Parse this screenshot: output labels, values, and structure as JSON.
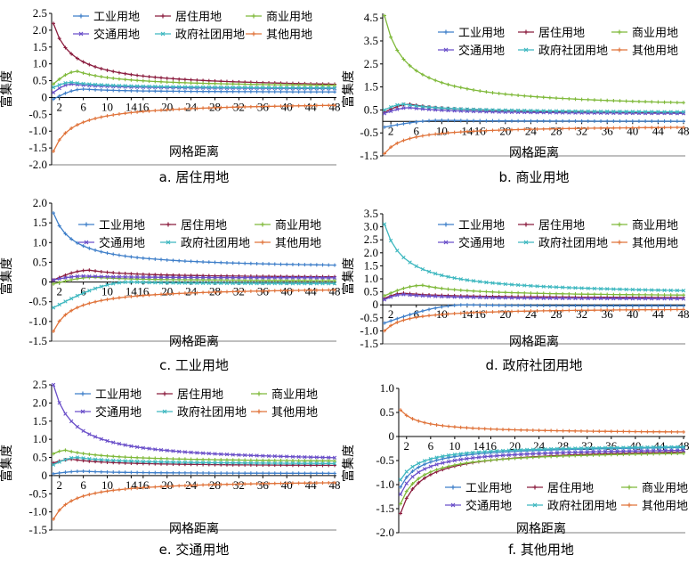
{
  "figure_meta": {
    "x_values": [
      1,
      2,
      3,
      4,
      5,
      6,
      7,
      8,
      9,
      10,
      11,
      12,
      13,
      14,
      15,
      16,
      17,
      18,
      19,
      20,
      21,
      22,
      23,
      24,
      25,
      26,
      27,
      28,
      29,
      30,
      31,
      32,
      33,
      34,
      35,
      36,
      37,
      38,
      39,
      40,
      41,
      42,
      43,
      44,
      45,
      46,
      47,
      48
    ],
    "colors": {
      "工业用地": "#3f7fc9",
      "居住用地": "#8b1d3f",
      "商业用地": "#7fb93a",
      "交通用地": "#6a4fc9",
      "政府社团用地": "#3fb8c0",
      "其他用地": "#e0733a"
    },
    "marker_style": "small cross markers on every point"
  },
  "chart_data": [
    {
      "type": "line",
      "panel": "a",
      "caption": "a. 居住用地",
      "xlabel": "网格距离",
      "ylabel": "富集度",
      "xticks": [
        "2",
        "6",
        "10",
        "14",
        "16",
        "20",
        "24",
        "28",
        "32",
        "36",
        "40",
        "44",
        "48"
      ],
      "yticks": [
        "2.5",
        "2.0",
        "1.5",
        "1.0",
        "0.5",
        "0",
        "-0.5",
        "-1.0",
        "-1.5",
        "-2.0"
      ],
      "ylim": [
        -2.0,
        2.5
      ],
      "legend": {
        "placement": "top",
        "entries": [
          "工业用地",
          "居住用地",
          "商业用地",
          "交通用地",
          "政府社团用地",
          "其他用地"
        ]
      },
      "series": [
        {
          "name": "工业用地",
          "start": -0.05,
          "peak": 0.25,
          "peak_at": 6,
          "end": 0.15
        },
        {
          "name": "居住用地",
          "start": 2.2,
          "peak": 2.2,
          "peak_at": 1,
          "end": 0.22
        },
        {
          "name": "商业用地",
          "start": 0.4,
          "peak": 0.78,
          "peak_at": 5,
          "end": 0.28
        },
        {
          "name": "交通用地",
          "start": 0.15,
          "peak": 0.4,
          "peak_at": 4,
          "end": 0.24
        },
        {
          "name": "政府社团用地",
          "start": 0.3,
          "peak": 0.45,
          "peak_at": 4,
          "end": 0.25
        },
        {
          "name": "其他用地",
          "start": -1.6,
          "peak": -1.6,
          "peak_at": 1,
          "end": -0.1
        }
      ]
    },
    {
      "type": "line",
      "panel": "b",
      "caption": "b. 商业用地",
      "xlabel": "网格距离",
      "ylabel": "富集度",
      "xticks": [
        "2",
        "6",
        "10",
        "14",
        "16",
        "20",
        "24",
        "28",
        "32",
        "36",
        "40",
        "44",
        "48"
      ],
      "yticks": [
        "4.5",
        "3.5",
        "2.5",
        "1.5",
        "0.5",
        "-0.5",
        "-1.5"
      ],
      "ylim": [
        -1.5,
        4.7
      ],
      "legend": {
        "placement": "top-right",
        "entries": [
          "工业用地",
          "居住用地",
          "商业用地",
          "交通用地",
          "政府社团用地",
          "其他用地"
        ]
      },
      "series": [
        {
          "name": "工业用地",
          "start": -0.25,
          "peak": 0.05,
          "peak_at": 10,
          "end": 0.0
        },
        {
          "name": "居住用地",
          "start": 0.4,
          "peak": 0.75,
          "peak_at": 5,
          "end": 0.3
        },
        {
          "name": "商业用地",
          "start": 4.6,
          "peak": 4.6,
          "peak_at": 1,
          "end": 0.45
        },
        {
          "name": "交通用地",
          "start": 0.35,
          "peak": 0.6,
          "peak_at": 5,
          "end": 0.3
        },
        {
          "name": "政府社团用地",
          "start": 0.5,
          "peak": 0.75,
          "peak_at": 4,
          "end": 0.35
        },
        {
          "name": "其他用地",
          "start": -1.4,
          "peak": -1.4,
          "peak_at": 1,
          "end": -0.15
        }
      ]
    },
    {
      "type": "line",
      "panel": "c",
      "caption": "c. 工业用地",
      "xlabel": "网格距离",
      "ylabel": "富集度",
      "xticks": [
        "2",
        "6",
        "10",
        "14",
        "16",
        "20",
        "24",
        "28",
        "32",
        "36",
        "40",
        "44",
        "48"
      ],
      "yticks": [
        "2.0",
        "1.5",
        "1.0",
        "0.5",
        "0",
        "-0.5",
        "-1.0",
        "-1.5"
      ],
      "ylim": [
        -1.5,
        2.0
      ],
      "legend": {
        "placement": "top",
        "entries": [
          "工业用地",
          "居住用地",
          "商业用地",
          "交通用地",
          "政府社团用地",
          "其他用地"
        ]
      },
      "series": [
        {
          "name": "工业用地",
          "start": 1.75,
          "peak": 1.75,
          "peak_at": 1,
          "end": 0.3
        },
        {
          "name": "居住用地",
          "start": 0.05,
          "peak": 0.3,
          "peak_at": 7,
          "end": 0.1
        },
        {
          "name": "商业用地",
          "start": -0.05,
          "peak": 0.12,
          "peak_at": 8,
          "end": 0.02
        },
        {
          "name": "交通用地",
          "start": 0.05,
          "peak": 0.15,
          "peak_at": 6,
          "end": 0.1
        },
        {
          "name": "政府社团用地",
          "start": -0.65,
          "peak": 0.0,
          "peak_at": 14,
          "end": -0.05
        },
        {
          "name": "其他用地",
          "start": -1.25,
          "peak": -1.25,
          "peak_at": 1,
          "end": -0.1
        }
      ]
    },
    {
      "type": "line",
      "panel": "d",
      "caption": "d. 政府社团用地",
      "xlabel": "网格距离",
      "ylabel": "富集度",
      "xticks": [
        "2",
        "6",
        "10",
        "14",
        "16",
        "20",
        "24",
        "28",
        "32",
        "36",
        "40",
        "44",
        "48"
      ],
      "yticks": [
        "3.5",
        "3.0",
        "2.5",
        "2.0",
        "1.5",
        "1.0",
        "0.5",
        "0",
        "-0.5",
        "-1.0",
        "-1.5"
      ],
      "ylim": [
        -1.5,
        3.5
      ],
      "legend": {
        "placement": "top-right",
        "entries": [
          "工业用地",
          "居住用地",
          "商业用地",
          "交通用地",
          "政府社团用地",
          "其他用地"
        ]
      },
      "series": [
        {
          "name": "工业用地",
          "start": -0.7,
          "peak": 0.0,
          "peak_at": 14,
          "end": -0.05
        },
        {
          "name": "居住用地",
          "start": 0.25,
          "peak": 0.45,
          "peak_at": 4,
          "end": 0.25
        },
        {
          "name": "商业用地",
          "start": 0.35,
          "peak": 0.75,
          "peak_at": 7,
          "end": 0.3
        },
        {
          "name": "交通用地",
          "start": 0.2,
          "peak": 0.4,
          "peak_at": 4,
          "end": 0.2
        },
        {
          "name": "政府社团用地",
          "start": 3.1,
          "peak": 3.1,
          "peak_at": 1,
          "end": 0.3
        },
        {
          "name": "其他用地",
          "start": -1.0,
          "peak": -1.0,
          "peak_at": 1,
          "end": -0.1
        }
      ]
    },
    {
      "type": "line",
      "panel": "e",
      "caption": "e. 交通用地",
      "xlabel": "网格距离",
      "ylabel": "富集度",
      "xticks": [
        "2",
        "6",
        "10",
        "14",
        "16",
        "20",
        "24",
        "28",
        "32",
        "36",
        "40",
        "44",
        "48"
      ],
      "yticks": [
        "2.5",
        "2.0",
        "1.5",
        "1.0",
        "0.5",
        "0",
        "-0.5",
        "-1.0",
        "-1.5"
      ],
      "ylim": [
        -1.5,
        2.5
      ],
      "legend": {
        "placement": "top",
        "entries": [
          "工业用地",
          "居住用地",
          "商业用地",
          "交通用地",
          "政府社团用地",
          "其他用地"
        ]
      },
      "series": [
        {
          "name": "工业用地",
          "start": 0.05,
          "peak": 0.12,
          "peak_at": 6,
          "end": 0.05
        },
        {
          "name": "居住用地",
          "start": 0.35,
          "peak": 0.45,
          "peak_at": 4,
          "end": 0.25
        },
        {
          "name": "商业用地",
          "start": 0.6,
          "peak": 0.7,
          "peak_at": 3,
          "end": 0.35
        },
        {
          "name": "交通用地",
          "start": 2.5,
          "peak": 2.5,
          "peak_at": 1,
          "end": 0.3
        },
        {
          "name": "政府社团用地",
          "start": 0.3,
          "peak": 0.5,
          "peak_at": 5,
          "end": 0.3
        },
        {
          "name": "其他用地",
          "start": -1.2,
          "peak": -1.2,
          "peak_at": 1,
          "end": -0.1
        }
      ]
    },
    {
      "type": "line",
      "panel": "f",
      "caption": "f. 其他用地",
      "xlabel": "网格距离",
      "ylabel": "富集度",
      "xticks": [
        "2",
        "6",
        "10",
        "14",
        "16",
        "20",
        "24",
        "28",
        "32",
        "36",
        "40",
        "44",
        "48"
      ],
      "yticks": [
        "1.0",
        "0.5",
        "0",
        "-0.5",
        "-1.0",
        "-1.5",
        "-2.0"
      ],
      "ylim": [
        -2.0,
        1.0
      ],
      "legend": {
        "placement": "bottom",
        "entries": [
          "工业用地",
          "居住用地",
          "商业用地",
          "交通用地",
          "政府社团用地",
          "其他用地"
        ]
      },
      "series": [
        {
          "name": "工业用地",
          "start": -1.05,
          "peak": -0.15,
          "peak_at": 48,
          "end": -0.15
        },
        {
          "name": "居住用地",
          "start": -1.6,
          "peak": -0.2,
          "peak_at": 48,
          "end": -0.2
        },
        {
          "name": "商业用地",
          "start": -1.4,
          "peak": -0.25,
          "peak_at": 48,
          "end": -0.25
        },
        {
          "name": "交通用地",
          "start": -1.2,
          "peak": -0.2,
          "peak_at": 48,
          "end": -0.2
        },
        {
          "name": "政府社团用地",
          "start": -0.9,
          "peak": -0.15,
          "peak_at": 48,
          "end": -0.15
        },
        {
          "name": "其他用地",
          "start": 0.55,
          "peak": 0.55,
          "peak_at": 1,
          "end": 0.05
        }
      ]
    }
  ]
}
